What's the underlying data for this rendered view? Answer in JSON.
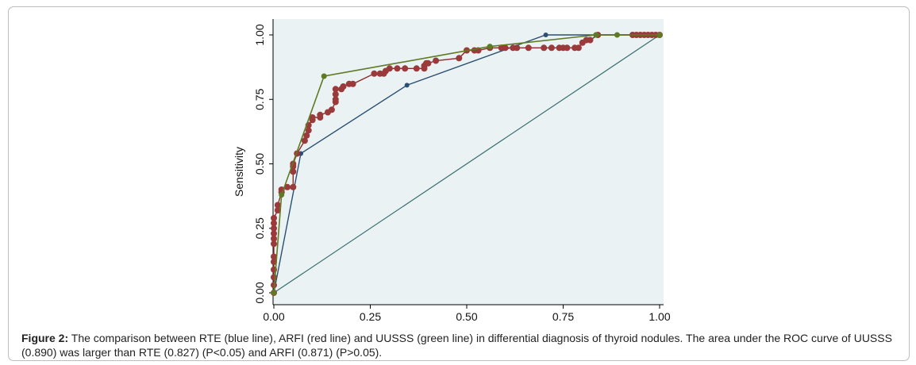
{
  "chart_data": {
    "type": "line",
    "ylabel": "Sensitivity",
    "xlabel": "",
    "xlim": [
      0,
      1
    ],
    "ylim": [
      0,
      1
    ],
    "x_ticks": [
      "0.00",
      "0.25",
      "0.50",
      "0.75",
      "1.00"
    ],
    "y_ticks": [
      "0.00",
      "0.25",
      "0.50",
      "0.75",
      "1.00"
    ],
    "grid": false,
    "legend": "none",
    "colors": {
      "rte": "#2b4f73",
      "arfi": "#8a2b2b",
      "arfi_marker": "#9a3a3a",
      "uusss": "#5e7a22",
      "reference": "#3a6e6e",
      "plot_bg": "#eaf2f3"
    },
    "series": [
      {
        "key": "rte",
        "points": [
          [
            0.0,
            0.0
          ],
          [
            0.07,
            0.54
          ],
          [
            0.345,
            0.805
          ],
          [
            0.705,
            1.0
          ],
          [
            1.0,
            1.0
          ]
        ]
      },
      {
        "key": "arfi",
        "points": [
          [
            0.0,
            0.0
          ],
          [
            0.0,
            0.03
          ],
          [
            0.0,
            0.06
          ],
          [
            0.0,
            0.09
          ],
          [
            0.0,
            0.12
          ],
          [
            0.0,
            0.14
          ],
          [
            0.0,
            0.19
          ],
          [
            0.0,
            0.21
          ],
          [
            0.0,
            0.23
          ],
          [
            0.0,
            0.25
          ],
          [
            0.0,
            0.27
          ],
          [
            0.0,
            0.29
          ],
          [
            0.01,
            0.32
          ],
          [
            0.01,
            0.34
          ],
          [
            0.02,
            0.39
          ],
          [
            0.02,
            0.4
          ],
          [
            0.035,
            0.41
          ],
          [
            0.05,
            0.41
          ],
          [
            0.05,
            0.47
          ],
          [
            0.05,
            0.49
          ],
          [
            0.05,
            0.5
          ],
          [
            0.06,
            0.54
          ],
          [
            0.08,
            0.59
          ],
          [
            0.085,
            0.61
          ],
          [
            0.09,
            0.63
          ],
          [
            0.09,
            0.65
          ],
          [
            0.1,
            0.67
          ],
          [
            0.1,
            0.68
          ],
          [
            0.12,
            0.68
          ],
          [
            0.12,
            0.69
          ],
          [
            0.14,
            0.7
          ],
          [
            0.15,
            0.71
          ],
          [
            0.16,
            0.74
          ],
          [
            0.16,
            0.75
          ],
          [
            0.16,
            0.77
          ],
          [
            0.16,
            0.79
          ],
          [
            0.175,
            0.79
          ],
          [
            0.18,
            0.8
          ],
          [
            0.195,
            0.81
          ],
          [
            0.205,
            0.81
          ],
          [
            0.26,
            0.85
          ],
          [
            0.275,
            0.85
          ],
          [
            0.285,
            0.85
          ],
          [
            0.29,
            0.86
          ],
          [
            0.3,
            0.87
          ],
          [
            0.32,
            0.87
          ],
          [
            0.34,
            0.87
          ],
          [
            0.37,
            0.87
          ],
          [
            0.39,
            0.87
          ],
          [
            0.39,
            0.88
          ],
          [
            0.395,
            0.89
          ],
          [
            0.4,
            0.89
          ],
          [
            0.42,
            0.9
          ],
          [
            0.48,
            0.91
          ],
          [
            0.5,
            0.94
          ],
          [
            0.52,
            0.94
          ],
          [
            0.53,
            0.94
          ],
          [
            0.56,
            0.95
          ],
          [
            0.59,
            0.95
          ],
          [
            0.6,
            0.95
          ],
          [
            0.62,
            0.95
          ],
          [
            0.63,
            0.95
          ],
          [
            0.66,
            0.95
          ],
          [
            0.7,
            0.95
          ],
          [
            0.72,
            0.95
          ],
          [
            0.74,
            0.95
          ],
          [
            0.75,
            0.95
          ],
          [
            0.76,
            0.95
          ],
          [
            0.78,
            0.95
          ],
          [
            0.79,
            0.95
          ],
          [
            0.8,
            0.97
          ],
          [
            0.81,
            0.98
          ],
          [
            0.82,
            0.98
          ],
          [
            0.84,
            1.0
          ],
          [
            0.93,
            1.0
          ],
          [
            0.94,
            1.0
          ],
          [
            0.95,
            1.0
          ],
          [
            0.96,
            1.0
          ],
          [
            0.97,
            1.0
          ],
          [
            0.98,
            1.0
          ],
          [
            0.99,
            1.0
          ],
          [
            1.0,
            1.0
          ]
        ]
      },
      {
        "key": "uusss",
        "points": [
          [
            0.0,
            0.0
          ],
          [
            0.02,
            0.38
          ],
          [
            0.13,
            0.84
          ],
          [
            0.56,
            0.955
          ],
          [
            0.835,
            1.0
          ],
          [
            0.89,
            1.0
          ],
          [
            1.0,
            1.0
          ]
        ]
      },
      {
        "key": "reference",
        "points": [
          [
            0.0,
            0.0
          ],
          [
            1.0,
            1.0
          ]
        ]
      }
    ]
  },
  "caption": {
    "label": "Figure 2:",
    "text": " The comparison between RTE (blue line), ARFI (red line) and UUSSS (green line) in differential diagnosis of thyroid nodules. The area under the ROC curve of UUSSS (0.890) was larger than RTE (0.827) (P<0.05) and ARFI (0.871) (P>0.05)."
  }
}
